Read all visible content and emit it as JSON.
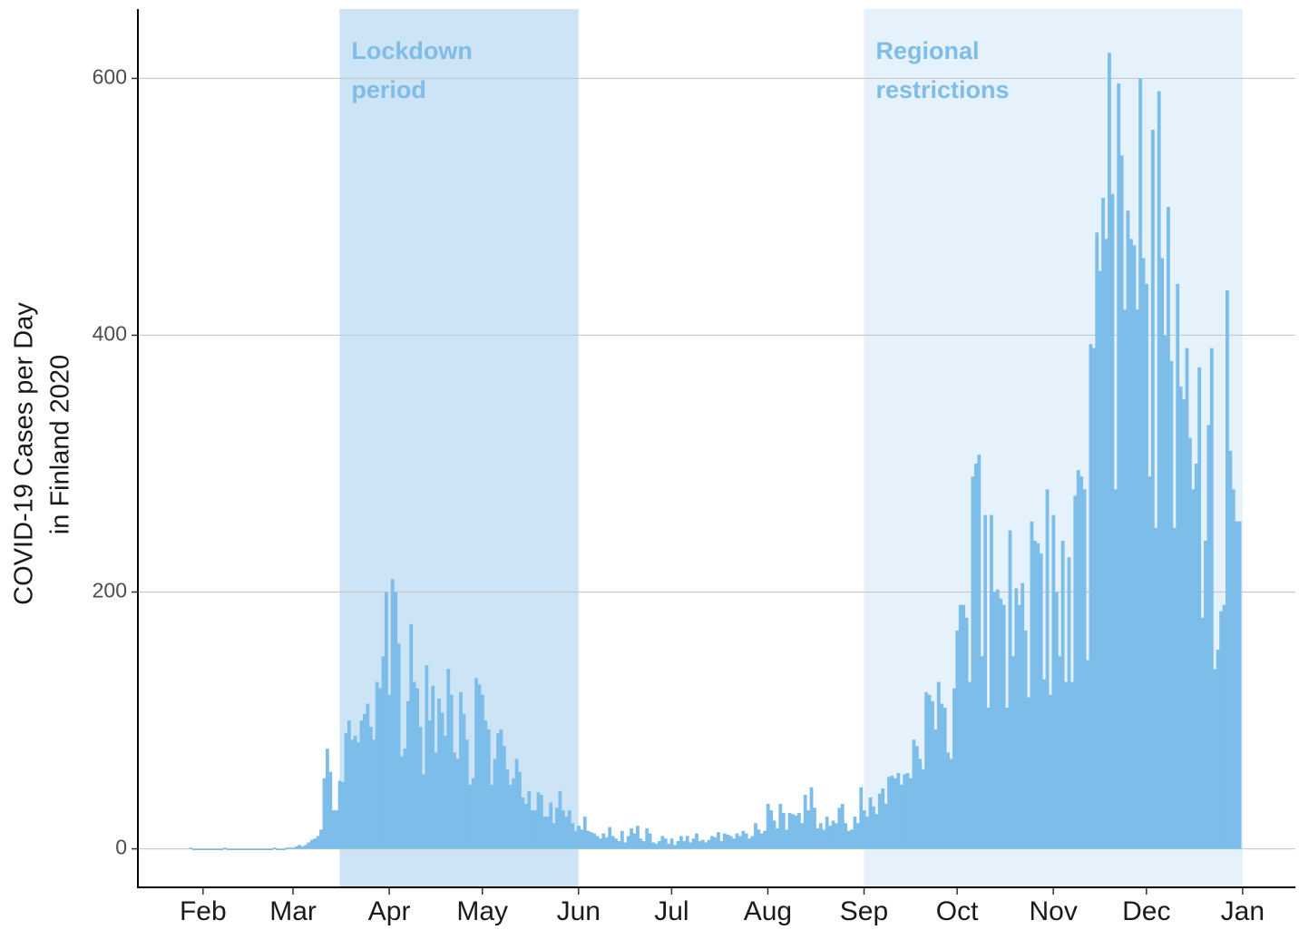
{
  "chart_data": {
    "type": "bar",
    "ylabel": [
      "COVID-19 Cases per Day",
      "in Finland 2020"
    ],
    "color": "#7cbde9",
    "xlim": [
      11,
      384
    ],
    "ylim": [
      -30,
      654
    ],
    "yticks": [
      0,
      200,
      400,
      600
    ],
    "xticks": [
      {
        "value": 32,
        "label": "Feb"
      },
      {
        "value": 61,
        "label": "Mar"
      },
      {
        "value": 92,
        "label": "Apr"
      },
      {
        "value": 122,
        "label": "May"
      },
      {
        "value": 153,
        "label": "Jun"
      },
      {
        "value": 183,
        "label": "Jul"
      },
      {
        "value": 214,
        "label": "Aug"
      },
      {
        "value": 245,
        "label": "Sep"
      },
      {
        "value": 275,
        "label": "Oct"
      },
      {
        "value": 306,
        "label": "Nov"
      },
      {
        "value": 336,
        "label": "Dec"
      },
      {
        "value": 367,
        "label": "Jan"
      }
    ],
    "grid": true,
    "annotations": [
      {
        "label": [
          "Lockdown",
          "period"
        ],
        "start": 76,
        "end": 153,
        "color": "#cde3f6",
        "text_color": "#7fbde9"
      },
      {
        "label": [
          "Regional",
          "restrictions"
        ],
        "start": 245,
        "end": 367,
        "color": "#e5f1fb",
        "text_color": "#7fbde9"
      }
    ],
    "x": [
      28,
      29,
      30,
      31,
      32,
      33,
      34,
      35,
      36,
      37,
      38,
      39,
      40,
      41,
      42,
      43,
      44,
      45,
      46,
      47,
      48,
      49,
      50,
      51,
      52,
      53,
      54,
      55,
      56,
      57,
      58,
      59,
      60,
      61,
      62,
      63,
      64,
      65,
      66,
      67,
      68,
      69,
      70,
      71,
      72,
      73,
      74,
      75,
      76,
      77,
      78,
      79,
      80,
      81,
      82,
      83,
      84,
      85,
      86,
      87,
      88,
      89,
      90,
      91,
      92,
      93,
      94,
      95,
      96,
      97,
      98,
      99,
      100,
      101,
      102,
      103,
      104,
      105,
      106,
      107,
      108,
      109,
      110,
      111,
      112,
      113,
      114,
      115,
      116,
      117,
      118,
      119,
      120,
      121,
      122,
      123,
      124,
      125,
      126,
      127,
      128,
      129,
      130,
      131,
      132,
      133,
      134,
      135,
      136,
      137,
      138,
      139,
      140,
      141,
      142,
      143,
      144,
      145,
      146,
      147,
      148,
      149,
      150,
      151,
      152,
      153,
      154,
      155,
      156,
      157,
      158,
      159,
      160,
      161,
      162,
      163,
      164,
      165,
      166,
      167,
      168,
      169,
      170,
      171,
      172,
      173,
      174,
      175,
      176,
      177,
      178,
      179,
      180,
      181,
      182,
      183,
      184,
      185,
      186,
      187,
      188,
      189,
      190,
      191,
      192,
      193,
      194,
      195,
      196,
      197,
      198,
      199,
      200,
      201,
      202,
      203,
      204,
      205,
      206,
      207,
      208,
      209,
      210,
      211,
      212,
      213,
      214,
      215,
      216,
      217,
      218,
      219,
      220,
      221,
      222,
      223,
      224,
      225,
      226,
      227,
      228,
      229,
      230,
      231,
      232,
      233,
      234,
      235,
      236,
      237,
      238,
      239,
      240,
      241,
      242,
      243,
      244,
      245,
      246,
      247,
      248,
      249,
      250,
      251,
      252,
      253,
      254,
      255,
      256,
      257,
      258,
      259,
      260,
      261,
      262,
      263,
      264,
      265,
      266,
      267,
      268,
      269,
      270,
      271,
      272,
      273,
      274,
      275,
      276,
      277,
      278,
      279,
      280,
      281,
      282,
      283,
      284,
      285,
      286,
      287,
      288,
      289,
      290,
      291,
      292,
      293,
      294,
      295,
      296,
      297,
      298,
      299,
      300,
      301,
      302,
      303,
      304,
      305,
      306,
      307,
      308,
      309,
      310,
      311,
      312,
      313,
      314,
      315,
      316,
      317,
      318,
      319,
      320,
      321,
      322,
      323,
      324,
      325,
      326,
      327,
      328,
      329,
      330,
      331,
      332,
      333,
      334,
      335,
      336,
      337,
      338,
      339,
      340,
      341,
      342,
      343,
      344,
      345,
      346,
      347,
      348,
      349,
      350,
      351,
      352,
      353,
      354,
      355,
      356,
      357,
      358,
      359,
      360,
      361,
      362,
      363,
      364,
      365,
      366
    ],
    "values": [
      1,
      0,
      0,
      0,
      0,
      0,
      0,
      0,
      0,
      0,
      0,
      1,
      0,
      0,
      0,
      0,
      0,
      0,
      0,
      0,
      0,
      0,
      0,
      0,
      0,
      0,
      0,
      1,
      0,
      0,
      0,
      1,
      1,
      1,
      2,
      3,
      2,
      3,
      5,
      7,
      8,
      10,
      15,
      55,
      78,
      60,
      30,
      30,
      53,
      52,
      90,
      100,
      85,
      88,
      83,
      100,
      105,
      113,
      95,
      85,
      130,
      125,
      150,
      200,
      120,
      210,
      200,
      160,
      72,
      78,
      115,
      175,
      130,
      125,
      95,
      58,
      143,
      100,
      127,
      75,
      117,
      106,
      88,
      140,
      120,
      75,
      70,
      122,
      105,
      85,
      50,
      55,
      133,
      128,
      120,
      100,
      93,
      50,
      70,
      90,
      93,
      80,
      62,
      50,
      55,
      70,
      60,
      40,
      35,
      45,
      30,
      30,
      44,
      42,
      25,
      25,
      36,
      20,
      32,
      45,
      30,
      25,
      30,
      20,
      14,
      18,
      15,
      25,
      14,
      13,
      12,
      10,
      8,
      12,
      9,
      17,
      10,
      8,
      6,
      14,
      5,
      10,
      16,
      12,
      18,
      8,
      6,
      16,
      12,
      5,
      4,
      6,
      10,
      8,
      4,
      8,
      3,
      6,
      10,
      6,
      10,
      5,
      8,
      12,
      6,
      7,
      5,
      7,
      10,
      9,
      13,
      6,
      12,
      11,
      10,
      8,
      12,
      10,
      14,
      12,
      8,
      10,
      20,
      15,
      12,
      14,
      35,
      30,
      22,
      16,
      35,
      28,
      15,
      28,
      27,
      26,
      28,
      20,
      42,
      30,
      48,
      32,
      16,
      20,
      15,
      25,
      18,
      22,
      20,
      32,
      35,
      20,
      14,
      15,
      25,
      20,
      48,
      30,
      25,
      40,
      33,
      27,
      43,
      47,
      35,
      56,
      57,
      55,
      59,
      50,
      58,
      59,
      55,
      85,
      80,
      70,
      62,
      122,
      120,
      115,
      93,
      130,
      113,
      110,
      75,
      70,
      125,
      170,
      190,
      190,
      180,
      130,
      290,
      300,
      307,
      150,
      260,
      110,
      260,
      200,
      202,
      195,
      190,
      110,
      248,
      150,
      203,
      190,
      207,
      170,
      118,
      255,
      240,
      238,
      230,
      132,
      280,
      120,
      260,
      200,
      150,
      240,
      130,
      227,
      130,
      275,
      295,
      290,
      280,
      147,
      393,
      390,
      480,
      450,
      507,
      475,
      620,
      510,
      280,
      596,
      540,
      420,
      497,
      475,
      470,
      420,
      600,
      460,
      440,
      290,
      560,
      250,
      590,
      460,
      400,
      500,
      380,
      250,
      440,
      360,
      350,
      390,
      320,
      280,
      300,
      375,
      180,
      240,
      330,
      390,
      140,
      155,
      185,
      190,
      435,
      310,
      280,
      255,
      255
    ]
  }
}
